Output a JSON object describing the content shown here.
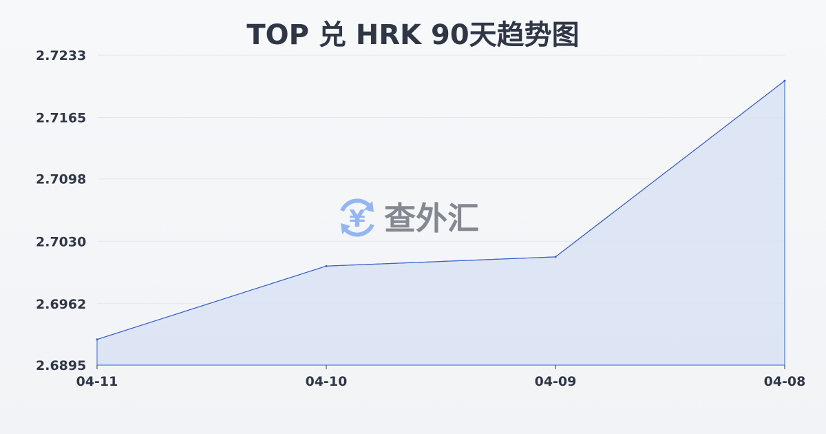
{
  "chart_data": {
    "type": "area",
    "title": "TOP 兑 HRK 90天趋势图",
    "xlabel": "",
    "ylabel": "",
    "categories": [
      "04-11",
      "04-10",
      "04-09",
      "04-08"
    ],
    "values": [
      2.6923,
      2.7003,
      2.7013,
      2.7205
    ],
    "yticks": [
      "2.7233",
      "2.7165",
      "2.7098",
      "2.7030",
      "2.6962",
      "2.6895"
    ],
    "ylim": [
      2.6895,
      2.7233
    ],
    "grid": true,
    "colors": {
      "line": "#3a62c8",
      "fill": "#d9e2f5",
      "grid": "#e3e6eb"
    }
  },
  "watermark": {
    "text": "查外汇",
    "icon": "yen-exchange-icon",
    "icon_color": "#8fb3f0"
  }
}
